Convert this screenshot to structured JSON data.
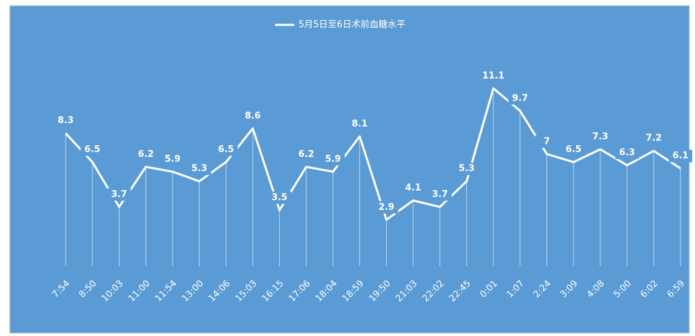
{
  "chart_data": {
    "type": "line",
    "categories": [
      "7:54",
      "8:50",
      "10:03",
      "11:00",
      "11:54",
      "13:00",
      "14:06",
      "15:03",
      "16:15",
      "17:06",
      "18:04",
      "18:59",
      "19:50",
      "21:03",
      "22:02",
      "22:45",
      "0:01",
      "1:07",
      "2:24",
      "3:09",
      "4:08",
      "5:00",
      "6:02",
      "6:59"
    ],
    "series": [
      {
        "name": "5月5日至6日术前血糖水平",
        "color": "#ffffff",
        "values": [
          8.3,
          6.5,
          3.7,
          6.2,
          5.9,
          5.3,
          6.5,
          8.6,
          3.5,
          6.2,
          5.9,
          8.1,
          2.9,
          4.1,
          3.7,
          5.3,
          11.1,
          9.7,
          7,
          6.5,
          7.3,
          6.3,
          7.2,
          6.1
        ]
      }
    ],
    "ylim": [
      0,
      12
    ],
    "legend": "top",
    "drop_lines": true,
    "background": "#5b9bd5"
  }
}
